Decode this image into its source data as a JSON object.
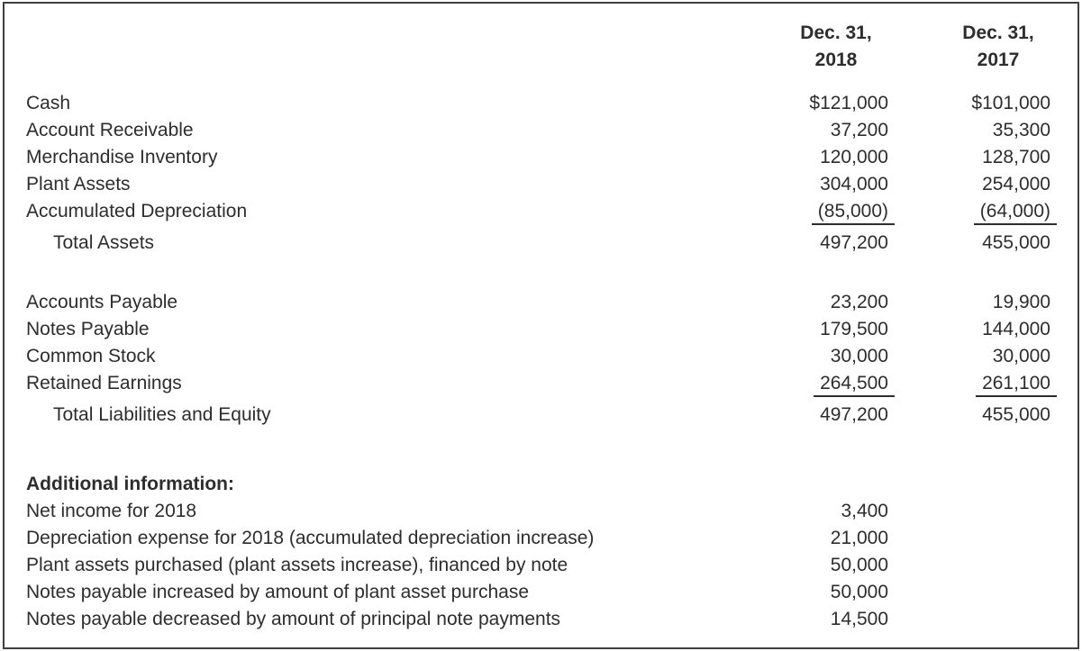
{
  "colors": {
    "text": "#2d2d2d",
    "border": "#3f3f3f",
    "rule": "#2d2d2d",
    "background": "#ffffff"
  },
  "headers": {
    "col2018": {
      "line1": "Dec. 31,",
      "line2": "2018"
    },
    "col2017": {
      "line1": "Dec. 31,",
      "line2": "2017"
    }
  },
  "assets": {
    "rows": [
      {
        "label": "Cash",
        "y2018": "$121,000",
        "y2017": "$101,000"
      },
      {
        "label": "Account Receivable",
        "y2018": "37,200",
        "y2017": "35,300"
      },
      {
        "label": "Merchandise Inventory",
        "y2018": "120,000",
        "y2017": "128,700"
      },
      {
        "label": "Plant Assets",
        "y2018": "304,000",
        "y2017": "254,000"
      },
      {
        "label": "Accumulated Depreciation",
        "y2018": "(85,000)",
        "y2017": "(64,000)"
      }
    ],
    "total": {
      "label": "Total Assets",
      "y2018": "497,200",
      "y2017": "455,000"
    }
  },
  "liabilities": {
    "rows": [
      {
        "label": "Accounts Payable",
        "y2018": "23,200",
        "y2017": "19,900"
      },
      {
        "label": "Notes Payable",
        "y2018": "179,500",
        "y2017": "144,000"
      },
      {
        "label": "Common Stock",
        "y2018": "30,000",
        "y2017": "30,000"
      },
      {
        "label": "Retained Earnings",
        "y2018": "264,500",
        "y2017": "261,100"
      }
    ],
    "total": {
      "label": "Total Liabilities and Equity",
      "y2018": "497,200",
      "y2017": "455,000"
    }
  },
  "additional_info": {
    "heading": "Additional information:",
    "rows": [
      {
        "label": "Net income for 2018",
        "value": "3,400"
      },
      {
        "label": "Depreciation expense for 2018 (accumulated depreciation increase)",
        "value": "21,000"
      },
      {
        "label": "Plant assets purchased (plant assets increase), financed by note",
        "value": "50,000"
      },
      {
        "label": "Notes payable increased by amount of plant asset purchase",
        "value": "50,000"
      },
      {
        "label": "Notes payable decreased by amount of principal note payments",
        "value": "14,500"
      }
    ]
  }
}
